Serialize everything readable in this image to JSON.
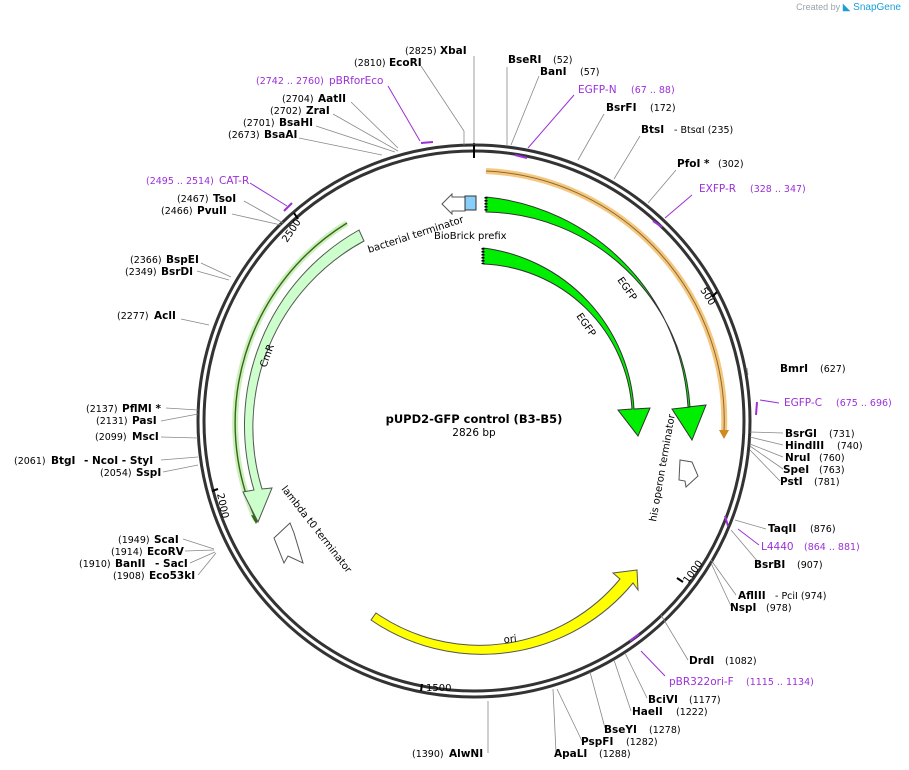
{
  "credit": {
    "prefix": "Created by",
    "brand": "SnapGene"
  },
  "plasmid": {
    "name": "pUPD2-GFP control (B3-B5)",
    "length_label": "2826 bp",
    "length": 2826
  },
  "ticks": [
    "500",
    "1000",
    "1500",
    "2000",
    "2500"
  ],
  "enzymes": [
    {
      "name": "XbaI",
      "pos": "(2825)"
    },
    {
      "name": "EcoRI",
      "pos": "(2810)"
    },
    {
      "name": "BseRI",
      "pos": "(52)"
    },
    {
      "name": "BanI",
      "pos": "(57)"
    },
    {
      "name": "BsrFI",
      "pos": "(172)"
    },
    {
      "name": "BtsI",
      "pos": "- BtsαI   (235)"
    },
    {
      "name": "PfoI *",
      "pos": "(302)"
    },
    {
      "name": "AatII",
      "pos": "(2704)"
    },
    {
      "name": "ZraI",
      "pos": "(2702)"
    },
    {
      "name": "BsaHI",
      "pos": "(2701)"
    },
    {
      "name": "BsaAI",
      "pos": "(2673)"
    },
    {
      "name": "TsoI",
      "pos": "(2467)"
    },
    {
      "name": "PvuII",
      "pos": "(2466)"
    },
    {
      "name": "BspEI",
      "pos": "(2366)"
    },
    {
      "name": "BsrDI",
      "pos": "(2349)"
    },
    {
      "name": "AclI",
      "pos": "(2277)"
    },
    {
      "name": "PflMI *",
      "pos": "(2137)"
    },
    {
      "name": "PasI",
      "pos": "(2131)"
    },
    {
      "name": "MscI",
      "pos": "(2099)"
    },
    {
      "name": "BtgI",
      "pos": "(2061)"
    },
    {
      "name": "- NcoI   - StyI",
      "pos": ""
    },
    {
      "name": "SspI",
      "pos": "(2054)"
    },
    {
      "name": "ScaI",
      "pos": "(1949)"
    },
    {
      "name": "EcoRV",
      "pos": "(1914)"
    },
    {
      "name": "BanII",
      "pos": "(1910)"
    },
    {
      "name": "- SacI",
      "pos": ""
    },
    {
      "name": "Eco53kI",
      "pos": "(1908)"
    },
    {
      "name": "BmrI",
      "pos": "(627)"
    },
    {
      "name": "BsrGI",
      "pos": "(731)"
    },
    {
      "name": "HindIII",
      "pos": "(740)"
    },
    {
      "name": "NruI",
      "pos": "(760)"
    },
    {
      "name": "SpeI",
      "pos": "(763)"
    },
    {
      "name": "PstI",
      "pos": "(781)"
    },
    {
      "name": "TaqII",
      "pos": "(876)"
    },
    {
      "name": "BsrBI",
      "pos": "(907)"
    },
    {
      "name": "AflIII",
      "pos": "- PciI   (974)"
    },
    {
      "name": "NspI",
      "pos": "(978)"
    },
    {
      "name": "DrdI",
      "pos": "(1082)"
    },
    {
      "name": "BciVI",
      "pos": "(1177)"
    },
    {
      "name": "HaeII",
      "pos": "(1222)"
    },
    {
      "name": "BseYI",
      "pos": "(1278)"
    },
    {
      "name": "PspFI",
      "pos": "(1282)"
    },
    {
      "name": "ApaLI",
      "pos": "(1288)"
    },
    {
      "name": "AlwNI",
      "pos": "(1390)"
    }
  ],
  "primers": [
    {
      "name": "pBRforEco",
      "pos": "(2742 .. 2760)"
    },
    {
      "name": "EGFP-N",
      "pos": "(67 .. 88)"
    },
    {
      "name": "EXFP-R",
      "pos": "(328 .. 347)"
    },
    {
      "name": "CAT-R",
      "pos": "(2495 .. 2514)"
    },
    {
      "name": "EGFP-C",
      "pos": "(675 .. 696)"
    },
    {
      "name": "L4440",
      "pos": "(864 .. 881)"
    },
    {
      "name": "pBR322ori-F",
      "pos": "(1115 .. 1134)"
    }
  ],
  "features": {
    "bacterial_terminator": "bacterial terminator",
    "biobrick_prefix": "BioBrick prefix",
    "egfp_outer": "EGFP",
    "egfp_inner": "EGFP",
    "his_operon_terminator": "his operon terminator",
    "cmr": "CmR",
    "lambda_t0": "lambda t0 terminator",
    "ori": "ori"
  },
  "colors": {
    "egfp": "#00ee00",
    "cmr": "#ccffcc",
    "ori": "#ffff00",
    "primer": "#9b30d9",
    "biobrick": "#87cefa",
    "orf_band": "#f5c77e"
  }
}
